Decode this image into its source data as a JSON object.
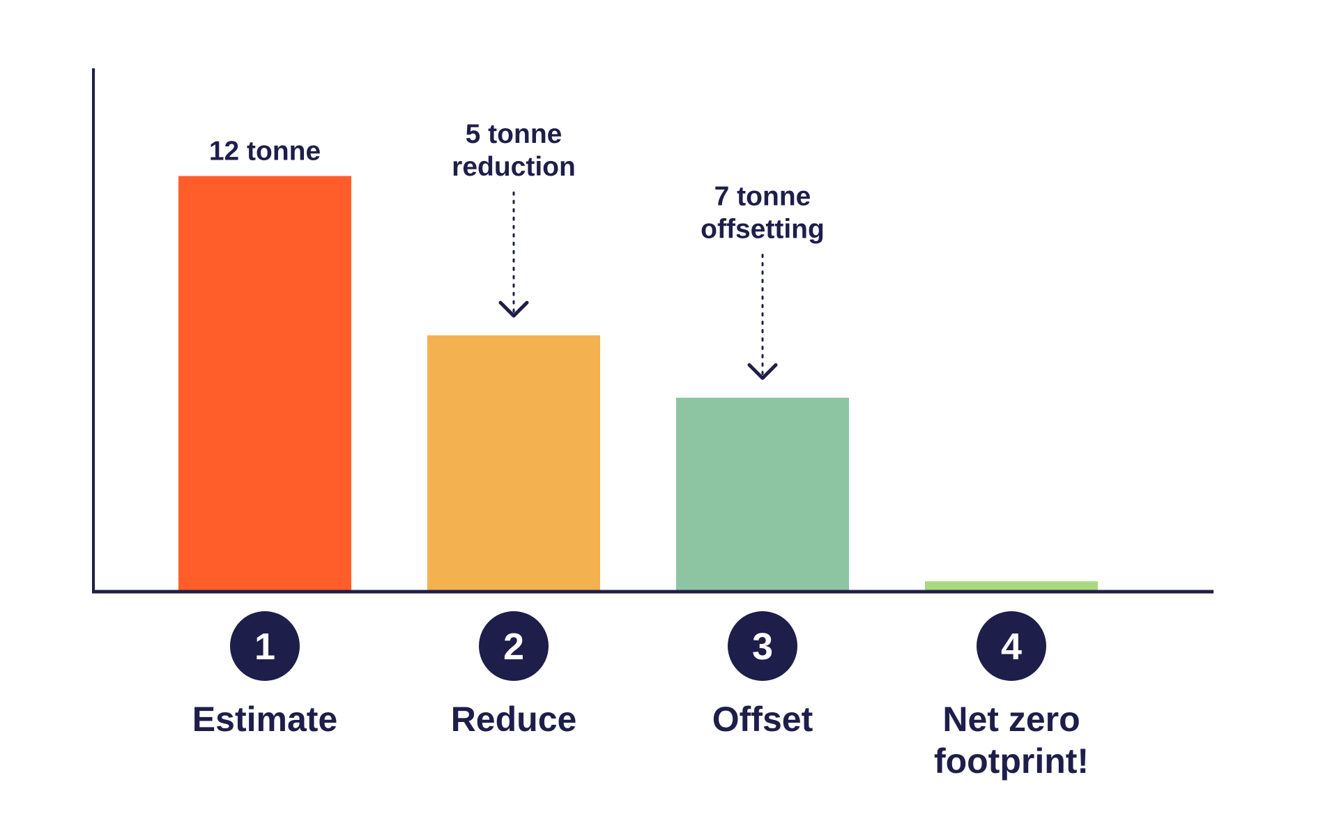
{
  "chart_data": {
    "type": "bar",
    "categories": [
      "Estimate",
      "Reduce",
      "Offset",
      "Net zero footprint!"
    ],
    "category_lines": [
      [
        "Estimate"
      ],
      [
        "Reduce"
      ],
      [
        "Offset"
      ],
      [
        "Net zero",
        "footprint!"
      ]
    ],
    "steps": [
      "1",
      "2",
      "3",
      "4"
    ],
    "values": [
      12,
      7.4,
      5.6,
      0.3
    ],
    "ylim": [
      0,
      13.5
    ],
    "bar_colors": [
      "#ff5e2b",
      "#f3b150",
      "#8dc5a3",
      "#a9d97f"
    ],
    "axis_color": "#1e1e4b",
    "text_color": "#1e1e4b",
    "grid": false,
    "annotations": [
      {
        "bar": 0,
        "lines": [
          "12 tonne"
        ],
        "arrow": false
      },
      {
        "bar": 1,
        "lines": [
          "5 tonne",
          "reduction"
        ],
        "arrow": true
      },
      {
        "bar": 2,
        "lines": [
          "7 tonne",
          "offsetting"
        ],
        "arrow": true
      }
    ]
  }
}
